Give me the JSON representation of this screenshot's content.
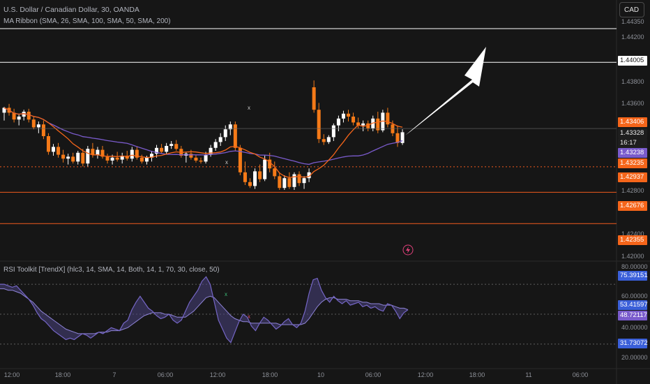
{
  "header": {
    "symbol_line": "U.S. Dollar / Canadian Dollar, 30, OANDA",
    "indicator_line": "MA Ribbon (SMA, 26, SMA, 100, SMA, 50, SMA, 200)",
    "rsi_line": "RSI Toolkit [TrendX] (hlc3, 14, SMA, 14, Both, 14, 1, 70, 30, close, 50)"
  },
  "currency_button": "CAD",
  "countdown": "16:17",
  "colors": {
    "background": "#161616",
    "bear_candle": "#f57a18",
    "bull_candle": "#ffffff",
    "ma_fast": "#f5651a",
    "ma_slow": "#7a5bcc",
    "level_line": "#f05a1e",
    "rsi_line": "#7566c6",
    "rsi_fill": "#4a4380"
  },
  "price_axis": {
    "ticks": [
      "1.44350",
      "1.44200",
      "1.43800",
      "1.43600",
      "1.42800",
      "1.42600",
      "1.42400",
      "1.42000"
    ],
    "tags": [
      {
        "text": "1.44005",
        "style": "white"
      },
      {
        "text": "1.43406",
        "style": "orange"
      },
      {
        "text": "1.43328",
        "style": "dark"
      },
      {
        "text": "16:17",
        "style": "dark"
      },
      {
        "text": "1.43238",
        "style": "purple"
      },
      {
        "text": "1.43235",
        "style": "orange"
      },
      {
        "text": "1.42937",
        "style": "orange"
      },
      {
        "text": "1.42676",
        "style": "orange"
      },
      {
        "text": "1.42355",
        "style": "orange"
      }
    ]
  },
  "rsi_axis": {
    "ticks": [
      "80.00000",
      "60.00000",
      "40.00000",
      "20.00000"
    ],
    "tags": [
      {
        "text": "75.39151",
        "style": "blue"
      },
      {
        "text": "53.41597",
        "style": "blue"
      },
      {
        "text": "48.72117",
        "style": "purple"
      },
      {
        "text": "31.73072",
        "style": "blue"
      }
    ]
  },
  "time_axis": [
    "12:00",
    "18:00",
    "7",
    "06:00",
    "12:00",
    "18:00",
    "10",
    "06:00",
    "12:00",
    "18:00",
    "11",
    "06:00"
  ],
  "chart_data": [
    {
      "type": "candlestick",
      "title": "U.S. Dollar / Canadian Dollar, 30, OANDA",
      "ylim": [
        1.42,
        1.445
      ],
      "horizontal_levels": [
        1.4435,
        1.44005,
        1.42937,
        1.42676,
        1.42355
      ],
      "last_price": 1.43328,
      "moving_averages": [
        {
          "name": "SMA 26",
          "value": 1.43235
        },
        {
          "name": "SMA 100",
          "value": 1.43238
        }
      ],
      "candles": [
        [
          1.4349,
          1.4355,
          1.4341,
          1.4354
        ],
        [
          1.4354,
          1.4358,
          1.4346,
          1.4349
        ],
        [
          1.4349,
          1.4353,
          1.4339,
          1.4342
        ],
        [
          1.4342,
          1.4347,
          1.4336,
          1.4345
        ],
        [
          1.4345,
          1.4352,
          1.4341,
          1.435
        ],
        [
          1.435,
          1.4353,
          1.4339,
          1.4342
        ],
        [
          1.4342,
          1.4345,
          1.4332,
          1.4334
        ],
        [
          1.4334,
          1.434,
          1.4328,
          1.4337
        ],
        [
          1.4337,
          1.4341,
          1.4322,
          1.4325
        ],
        [
          1.4325,
          1.4328,
          1.4306,
          1.4309
        ],
        [
          1.4309,
          1.4317,
          1.4305,
          1.4314
        ],
        [
          1.4314,
          1.4318,
          1.4303,
          1.4306
        ],
        [
          1.4306,
          1.4311,
          1.4298,
          1.4302
        ],
        [
          1.4302,
          1.4307,
          1.4296,
          1.4304
        ],
        [
          1.4304,
          1.4308,
          1.4297,
          1.4299
        ],
        [
          1.4299,
          1.431,
          1.4296,
          1.4308
        ],
        [
          1.4308,
          1.4312,
          1.4294,
          1.4297
        ],
        [
          1.4297,
          1.4315,
          1.4294,
          1.4312
        ],
        [
          1.4312,
          1.4318,
          1.4303,
          1.4306
        ],
        [
          1.4306,
          1.4314,
          1.4302,
          1.4311
        ],
        [
          1.4311,
          1.4315,
          1.4302,
          1.4304
        ],
        [
          1.4304,
          1.4307,
          1.4297,
          1.43
        ],
        [
          1.43,
          1.4306,
          1.4296,
          1.4303
        ],
        [
          1.4303,
          1.4309,
          1.4299,
          1.4301
        ],
        [
          1.4301,
          1.4308,
          1.4297,
          1.4305
        ],
        [
          1.4305,
          1.431,
          1.43,
          1.4302
        ],
        [
          1.4302,
          1.4314,
          1.4299,
          1.4311
        ],
        [
          1.4311,
          1.4314,
          1.4301,
          1.4303
        ],
        [
          1.4303,
          1.4306,
          1.4297,
          1.4299
        ],
        [
          1.4299,
          1.4305,
          1.4296,
          1.4303
        ],
        [
          1.4303,
          1.431,
          1.4299,
          1.4307
        ],
        [
          1.4307,
          1.4316,
          1.4303,
          1.4313
        ],
        [
          1.4313,
          1.4317,
          1.4307,
          1.4309
        ],
        [
          1.4309,
          1.4318,
          1.4306,
          1.4315
        ],
        [
          1.4315,
          1.432,
          1.4312,
          1.4317
        ],
        [
          1.4317,
          1.4321,
          1.431,
          1.4312
        ],
        [
          1.4312,
          1.4315,
          1.4303,
          1.4305
        ],
        [
          1.4305,
          1.4309,
          1.4298,
          1.4307
        ],
        [
          1.4307,
          1.4311,
          1.4301,
          1.4303
        ],
        [
          1.4303,
          1.4306,
          1.4298,
          1.43
        ],
        [
          1.43,
          1.4303,
          1.4297,
          1.4299
        ],
        [
          1.4299,
          1.4309,
          1.4297,
          1.4306
        ],
        [
          1.4306,
          1.4316,
          1.4304,
          1.4313
        ],
        [
          1.4313,
          1.4322,
          1.431,
          1.4319
        ],
        [
          1.4319,
          1.4328,
          1.4315,
          1.4324
        ],
        [
          1.4324,
          1.4336,
          1.432,
          1.4332
        ],
        [
          1.4332,
          1.434,
          1.4326,
          1.4337
        ],
        [
          1.4337,
          1.434,
          1.431,
          1.4313
        ],
        [
          1.4313,
          1.4316,
          1.4285,
          1.4288
        ],
        [
          1.4288,
          1.4299,
          1.4275,
          1.4278
        ],
        [
          1.4278,
          1.4282,
          1.4272,
          1.4274
        ],
        [
          1.4274,
          1.4292,
          1.4271,
          1.4289
        ],
        [
          1.4289,
          1.4296,
          1.4278,
          1.4281
        ],
        [
          1.4281,
          1.4305,
          1.4279,
          1.4301
        ],
        [
          1.4301,
          1.4308,
          1.4288,
          1.4292
        ],
        [
          1.4292,
          1.4299,
          1.4281,
          1.4284
        ],
        [
          1.4284,
          1.4288,
          1.427,
          1.4272
        ],
        [
          1.4272,
          1.4285,
          1.427,
          1.4282
        ],
        [
          1.4282,
          1.4288,
          1.4271,
          1.4273
        ],
        [
          1.4273,
          1.4288,
          1.427,
          1.4286
        ],
        [
          1.4286,
          1.4289,
          1.4274,
          1.4277
        ],
        [
          1.4277,
          1.4284,
          1.4271,
          1.4282
        ],
        [
          1.4282,
          1.4292,
          1.4278,
          1.4288
        ],
        [
          1.4375,
          1.4382,
          1.4349,
          1.4352
        ],
        [
          1.4352,
          1.4359,
          1.4318,
          1.4322
        ],
        [
          1.4322,
          1.4327,
          1.4316,
          1.4319
        ],
        [
          1.4319,
          1.4326,
          1.4317,
          1.4324
        ],
        [
          1.4324,
          1.4338,
          1.432,
          1.4336
        ],
        [
          1.4336,
          1.4346,
          1.433,
          1.4343
        ],
        [
          1.4343,
          1.4351,
          1.4339,
          1.4348
        ],
        [
          1.4348,
          1.4352,
          1.434,
          1.4345
        ],
        [
          1.4345,
          1.4349,
          1.4336,
          1.4339
        ],
        [
          1.4339,
          1.4344,
          1.4333,
          1.4336
        ],
        [
          1.4336,
          1.4341,
          1.433,
          1.4338
        ],
        [
          1.4338,
          1.4341,
          1.433,
          1.4333
        ],
        [
          1.4333,
          1.4346,
          1.433,
          1.4343
        ],
        [
          1.4343,
          1.435,
          1.4328,
          1.4331
        ],
        [
          1.4331,
          1.4352,
          1.4329,
          1.4349
        ],
        [
          1.4349,
          1.4354,
          1.4334,
          1.4337
        ],
        [
          1.4337,
          1.4341,
          1.4325,
          1.4328
        ],
        [
          1.4328,
          1.4336,
          1.4314,
          1.4318
        ],
        [
          1.4318,
          1.4332,
          1.4316,
          1.4329
        ]
      ]
    },
    {
      "type": "line",
      "title": "RSI Toolkit [TrendX] (hlc3, 14, SMA, 14, Both, 14, 1, 70, 30, close, 50)",
      "ylim": [
        15,
        85
      ],
      "bands": [
        70,
        50,
        30
      ],
      "series": [
        {
          "values": [
            70,
            70,
            69,
            68,
            69,
            66,
            63,
            60,
            56,
            51,
            47,
            45,
            42,
            39,
            37,
            35,
            33,
            34,
            33,
            35,
            37,
            36,
            34,
            36,
            38,
            37,
            39,
            41,
            40,
            39,
            44,
            46,
            53,
            58,
            62,
            58,
            54,
            52,
            49,
            47,
            48,
            50,
            46,
            44,
            46,
            52,
            58,
            62,
            66,
            72,
            75,
            70,
            58,
            46,
            40,
            34,
            31,
            38,
            45,
            50,
            48,
            42,
            39,
            44,
            48,
            46,
            43,
            40,
            42,
            45,
            47,
            43,
            41,
            44,
            52,
            64,
            73,
            74,
            66,
            61,
            58,
            62,
            59,
            57,
            59,
            56,
            57,
            58,
            55,
            56,
            54,
            55,
            53,
            52,
            57,
            56,
            52,
            47,
            51,
            53
          ]
        },
        {
          "values": [
            67,
            67,
            66,
            66,
            65,
            64,
            62,
            60,
            58,
            55,
            52,
            50,
            48,
            46,
            44,
            42,
            40,
            39,
            38,
            37,
            37,
            37,
            37,
            37,
            38,
            38,
            38,
            39,
            39,
            39,
            40,
            41,
            43,
            45,
            47,
            49,
            50,
            51,
            51,
            51,
            50,
            50,
            49,
            48,
            48,
            48,
            50,
            52,
            55,
            58,
            61,
            62,
            61,
            58,
            55,
            52,
            49,
            47,
            46,
            45,
            45,
            44,
            44,
            44,
            44,
            44,
            44,
            44,
            43,
            43,
            43,
            43,
            43,
            43,
            44,
            47,
            51,
            55,
            58,
            60,
            61,
            61,
            60,
            60,
            60,
            59,
            59,
            59,
            58,
            58,
            57,
            57,
            57,
            56,
            56,
            56,
            55,
            54,
            54,
            53
          ]
        }
      ]
    }
  ]
}
